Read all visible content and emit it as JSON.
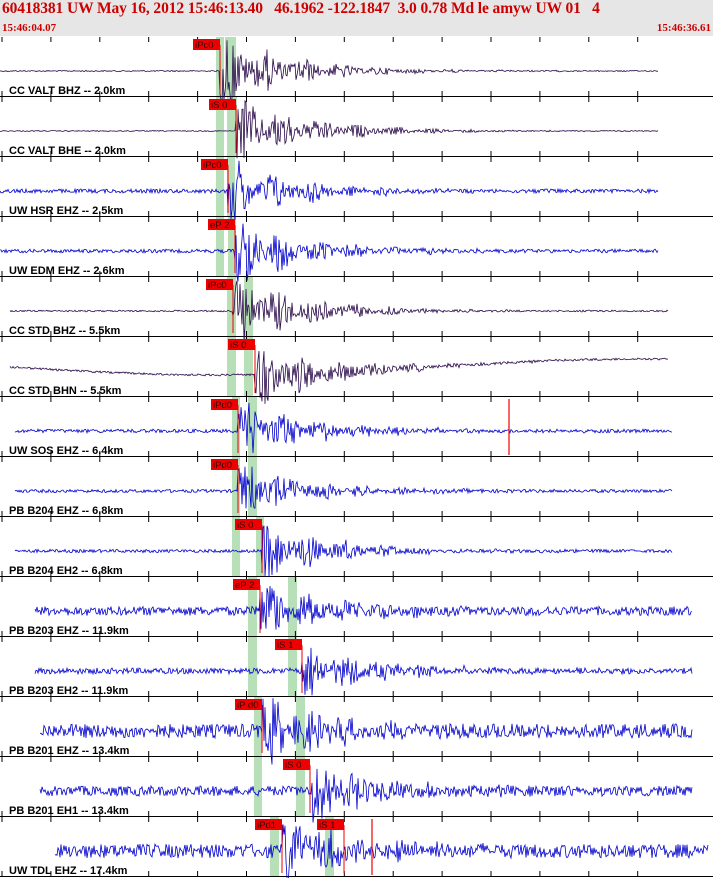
{
  "header": {
    "title": "60418381 UW May 16, 2012 15:46:13.40   46.1962 -122.1847  3.0 0.78 Md le amyw UW 01   4",
    "time_start": "15:46:04.07",
    "time_end": "15:46:36.61"
  },
  "colors": {
    "header_bg": "#e6e6e6",
    "header_text": "#cc0000",
    "pick_box": "#ee0000",
    "pick_window": "#b8e0b8",
    "trace_blue": "#0000cc",
    "trace_purple": "#2a0a4a",
    "tick": "#000000"
  },
  "traces": [
    {
      "label": "CC VALT BHZ -- 2.0km",
      "pick": "iPc0"
    },
    {
      "label": "CC VALT BHE -- 2.0km",
      "pick": "iS 0"
    },
    {
      "label": "UW HSR EHZ -- 2.5km",
      "pick": "iPc0"
    },
    {
      "label": "UW EDM EHZ -- 2.6km",
      "pick": "eP 2"
    },
    {
      "label": "CC STD BHZ -- 5.5km",
      "pick": "iPc0"
    },
    {
      "label": "CC STD BHN -- 5.5km",
      "pick": "iS 0"
    },
    {
      "label": "UW SOS EHZ -- 6.4km",
      "pick": "iPd0"
    },
    {
      "label": "PB B204 EHZ -- 6.8km",
      "pick": "iPd0"
    },
    {
      "label": "PB B204 EH2 -- 6.8km",
      "pick": "iS 0"
    },
    {
      "label": "PB B203 EHZ -- 11.9km",
      "pick": "eP 2"
    },
    {
      "label": "PB B203 EH2 -- 11.9km",
      "pick": "iS 1"
    },
    {
      "label": "PB B201 EHZ -- 13.4km",
      "pick": "iP d0"
    },
    {
      "label": "PB B201 EH1 -- 13.4km",
      "pick": "iS 0"
    },
    {
      "label": "UW TDL EHZ -- 17.4km",
      "pick": "iPd1",
      "pick2": "iS 1"
    }
  ]
}
